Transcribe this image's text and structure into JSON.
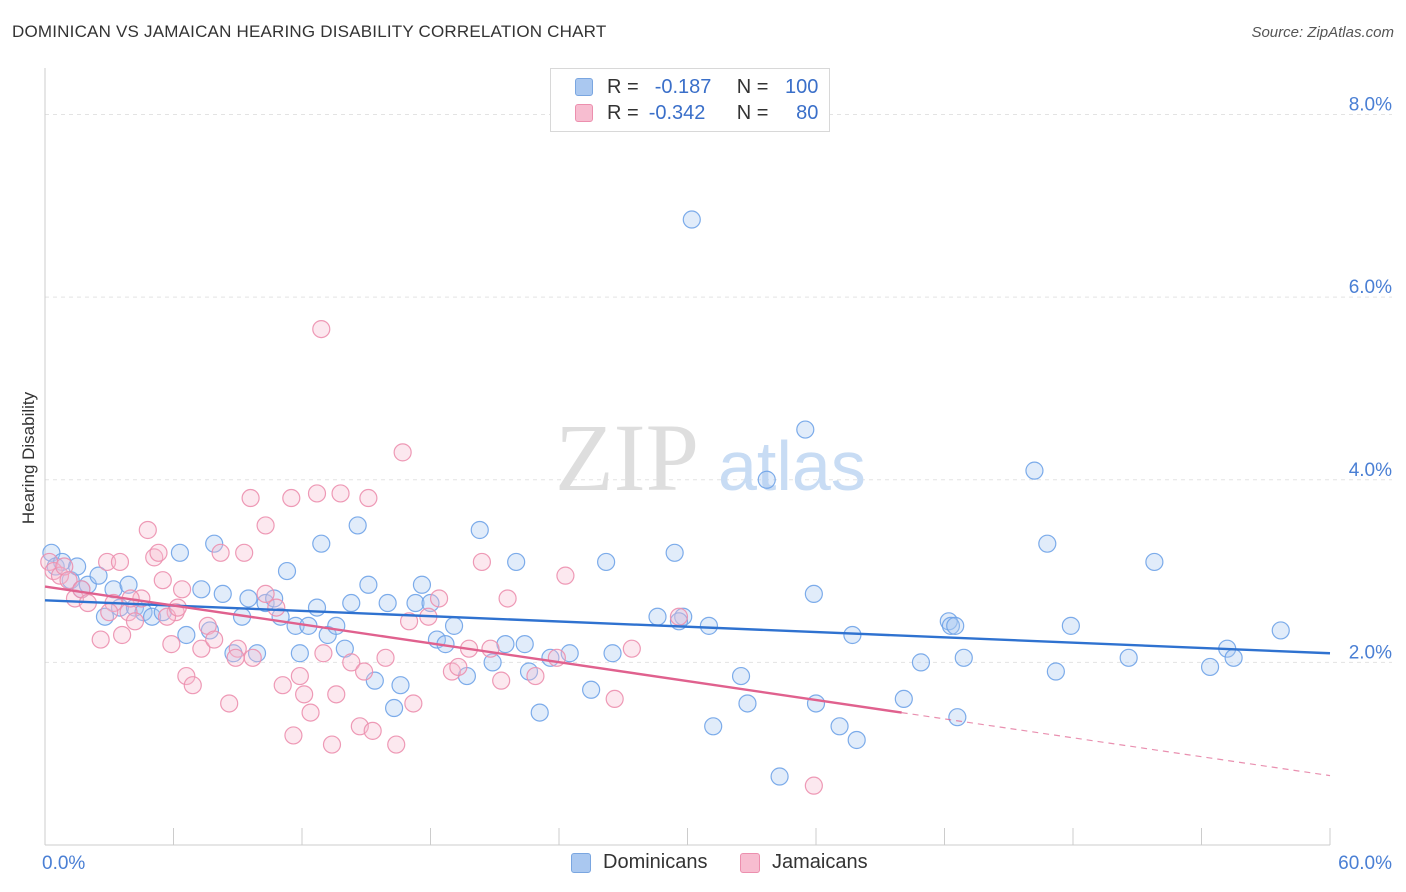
{
  "header": {
    "title": "DOMINICAN VS JAMAICAN HEARING DISABILITY CORRELATION CHART",
    "source": "Source: ZipAtlas.com"
  },
  "watermark": {
    "zip": "ZIP",
    "atlas": "atlas"
  },
  "legend": {
    "rows": [
      {
        "r_label": "R =",
        "r_value": "-0.187",
        "n_label": "N =",
        "n_value": "100",
        "color": "#aac8f0",
        "border": "#7aa6e0"
      },
      {
        "r_label": "R =",
        "r_value": "-0.342",
        "n_label": "N =",
        "n_value": "80",
        "color": "#f7bdd0",
        "border": "#ec8fae"
      }
    ]
  },
  "bottom_legend": {
    "dominicans": "Dominicans",
    "jamaicans": "Jamaicans"
  },
  "chart_data": {
    "type": "scatter",
    "title": "DOMINICAN VS JAMAICAN HEARING DISABILITY CORRELATION CHART",
    "xlabel": "",
    "ylabel": "Hearing Disability",
    "xlim": [
      0,
      60
    ],
    "ylim": [
      0,
      8.4
    ],
    "x_tick_labels": [
      "0.0%",
      "60.0%"
    ],
    "y_ticks": [
      2,
      4,
      6,
      8
    ],
    "y_tick_labels": [
      "2.0%",
      "4.0%",
      "6.0%",
      "8.0%"
    ],
    "grid": true,
    "legend_position": "top-center",
    "series": [
      {
        "name": "Dominicans",
        "color": "#6fa3e8",
        "trend": {
          "x0": 0,
          "y0": 2.68,
          "x1": 60,
          "y1": 2.1,
          "color": "#2f72d0"
        },
        "points": [
          [
            0.3,
            3.2
          ],
          [
            0.5,
            3.05
          ],
          [
            0.8,
            3.1
          ],
          [
            1.2,
            2.9
          ],
          [
            1.5,
            3.05
          ],
          [
            1.7,
            2.8
          ],
          [
            2.0,
            2.85
          ],
          [
            2.5,
            2.95
          ],
          [
            2.8,
            2.5
          ],
          [
            3.2,
            2.8
          ],
          [
            3.5,
            2.6
          ],
          [
            3.9,
            2.85
          ],
          [
            4.2,
            2.6
          ],
          [
            4.6,
            2.55
          ],
          [
            5.0,
            2.5
          ],
          [
            5.5,
            2.55
          ],
          [
            6.3,
            3.2
          ],
          [
            6.6,
            2.3
          ],
          [
            7.3,
            2.8
          ],
          [
            7.7,
            2.35
          ],
          [
            7.9,
            3.3
          ],
          [
            8.3,
            2.75
          ],
          [
            8.8,
            2.1
          ],
          [
            9.2,
            2.5
          ],
          [
            9.5,
            2.7
          ],
          [
            9.9,
            2.1
          ],
          [
            10.3,
            2.65
          ],
          [
            10.7,
            2.7
          ],
          [
            11.0,
            2.5
          ],
          [
            11.3,
            3.0
          ],
          [
            11.7,
            2.4
          ],
          [
            11.9,
            2.1
          ],
          [
            12.3,
            2.4
          ],
          [
            12.7,
            2.6
          ],
          [
            12.9,
            3.3
          ],
          [
            13.2,
            2.3
          ],
          [
            13.6,
            2.4
          ],
          [
            14.0,
            2.15
          ],
          [
            14.3,
            2.65
          ],
          [
            14.6,
            3.5
          ],
          [
            15.1,
            2.85
          ],
          [
            15.4,
            1.8
          ],
          [
            16.0,
            2.65
          ],
          [
            16.3,
            1.5
          ],
          [
            16.6,
            1.75
          ],
          [
            17.3,
            2.65
          ],
          [
            17.6,
            2.85
          ],
          [
            18.0,
            2.65
          ],
          [
            18.3,
            2.25
          ],
          [
            18.7,
            2.2
          ],
          [
            19.1,
            2.4
          ],
          [
            19.7,
            1.85
          ],
          [
            20.3,
            3.45
          ],
          [
            20.9,
            2.0
          ],
          [
            21.5,
            2.2
          ],
          [
            22.0,
            3.1
          ],
          [
            22.4,
            2.2
          ],
          [
            22.6,
            1.9
          ],
          [
            23.1,
            1.45
          ],
          [
            23.6,
            2.05
          ],
          [
            24.5,
            2.1
          ],
          [
            25.5,
            1.7
          ],
          [
            26.2,
            3.1
          ],
          [
            26.5,
            2.1
          ],
          [
            28.6,
            2.5
          ],
          [
            29.4,
            3.2
          ],
          [
            29.8,
            2.5
          ],
          [
            30.2,
            6.85
          ],
          [
            31.0,
            2.4
          ],
          [
            31.2,
            1.3
          ],
          [
            32.5,
            1.85
          ],
          [
            32.8,
            1.55
          ],
          [
            33.7,
            4.0
          ],
          [
            34.3,
            0.75
          ],
          [
            35.5,
            4.55
          ],
          [
            35.9,
            2.75
          ],
          [
            36.0,
            1.55
          ],
          [
            37.1,
            1.3
          ],
          [
            37.7,
            2.3
          ],
          [
            37.9,
            1.15
          ],
          [
            40.1,
            1.6
          ],
          [
            40.9,
            2.0
          ],
          [
            42.2,
            2.45
          ],
          [
            42.3,
            2.4
          ],
          [
            42.9,
            2.05
          ],
          [
            42.6,
            1.4
          ],
          [
            46.2,
            4.1
          ],
          [
            46.8,
            3.3
          ],
          [
            47.2,
            1.9
          ],
          [
            47.9,
            2.4
          ],
          [
            50.6,
            2.05
          ],
          [
            51.8,
            3.1
          ],
          [
            54.4,
            1.95
          ],
          [
            55.2,
            2.15
          ],
          [
            55.5,
            2.05
          ],
          [
            57.7,
            2.35
          ],
          [
            42.5,
            2.4
          ],
          [
            29.6,
            2.45
          ]
        ]
      },
      {
        "name": "Jamaicans",
        "color": "#f2a0bc",
        "trend": {
          "x0": 0,
          "y0": 2.83,
          "x1": 40,
          "y1": 1.45,
          "color": "#e0618e"
        },
        "trend_dashed": {
          "x0": 40,
          "y0": 1.45,
          "x1": 60,
          "y1": 0.76
        },
        "points": [
          [
            0.2,
            3.1
          ],
          [
            0.4,
            3.0
          ],
          [
            0.7,
            2.95
          ],
          [
            0.9,
            3.05
          ],
          [
            1.1,
            2.9
          ],
          [
            1.4,
            2.7
          ],
          [
            1.7,
            2.8
          ],
          [
            2.0,
            2.65
          ],
          [
            2.6,
            2.25
          ],
          [
            2.9,
            3.1
          ],
          [
            3.2,
            2.65
          ],
          [
            3.5,
            3.1
          ],
          [
            3.6,
            2.3
          ],
          [
            3.9,
            2.55
          ],
          [
            4.2,
            2.45
          ],
          [
            4.5,
            2.7
          ],
          [
            4.8,
            3.45
          ],
          [
            5.1,
            3.15
          ],
          [
            5.3,
            3.2
          ],
          [
            5.5,
            2.9
          ],
          [
            5.9,
            2.2
          ],
          [
            6.1,
            2.55
          ],
          [
            6.4,
            2.8
          ],
          [
            6.6,
            1.85
          ],
          [
            6.9,
            1.75
          ],
          [
            7.3,
            2.15
          ],
          [
            7.6,
            2.4
          ],
          [
            7.9,
            2.25
          ],
          [
            8.2,
            3.2
          ],
          [
            8.6,
            1.55
          ],
          [
            9.0,
            2.15
          ],
          [
            9.3,
            3.2
          ],
          [
            9.7,
            2.05
          ],
          [
            10.3,
            2.75
          ],
          [
            10.8,
            2.6
          ],
          [
            11.1,
            1.75
          ],
          [
            11.6,
            1.2
          ],
          [
            11.9,
            1.85
          ],
          [
            12.1,
            1.65
          ],
          [
            12.4,
            1.45
          ],
          [
            13.0,
            2.1
          ],
          [
            13.4,
            1.1
          ],
          [
            13.8,
            3.85
          ],
          [
            14.3,
            2.0
          ],
          [
            14.7,
            1.3
          ],
          [
            14.9,
            1.9
          ],
          [
            15.3,
            1.25
          ],
          [
            15.9,
            2.05
          ],
          [
            16.4,
            1.1
          ],
          [
            16.7,
            4.3
          ],
          [
            17.2,
            1.55
          ],
          [
            17.9,
            2.5
          ],
          [
            18.4,
            2.7
          ],
          [
            19.0,
            1.9
          ],
          [
            19.3,
            1.95
          ],
          [
            19.8,
            2.15
          ],
          [
            20.4,
            3.1
          ],
          [
            20.8,
            2.15
          ],
          [
            21.3,
            1.8
          ],
          [
            21.6,
            2.7
          ],
          [
            22.9,
            1.85
          ],
          [
            23.9,
            2.05
          ],
          [
            24.3,
            2.95
          ],
          [
            26.6,
            1.6
          ],
          [
            27.4,
            2.15
          ],
          [
            29.6,
            2.5
          ],
          [
            35.9,
            0.65
          ],
          [
            9.6,
            3.8
          ],
          [
            10.3,
            3.5
          ],
          [
            11.5,
            3.8
          ],
          [
            12.7,
            3.85
          ],
          [
            12.9,
            5.65
          ],
          [
            15.1,
            3.8
          ],
          [
            5.7,
            2.5
          ],
          [
            6.2,
            2.6
          ],
          [
            4.0,
            2.7
          ],
          [
            8.9,
            2.05
          ],
          [
            13.6,
            1.65
          ],
          [
            17.0,
            2.45
          ],
          [
            3.0,
            2.55
          ]
        ]
      }
    ]
  }
}
